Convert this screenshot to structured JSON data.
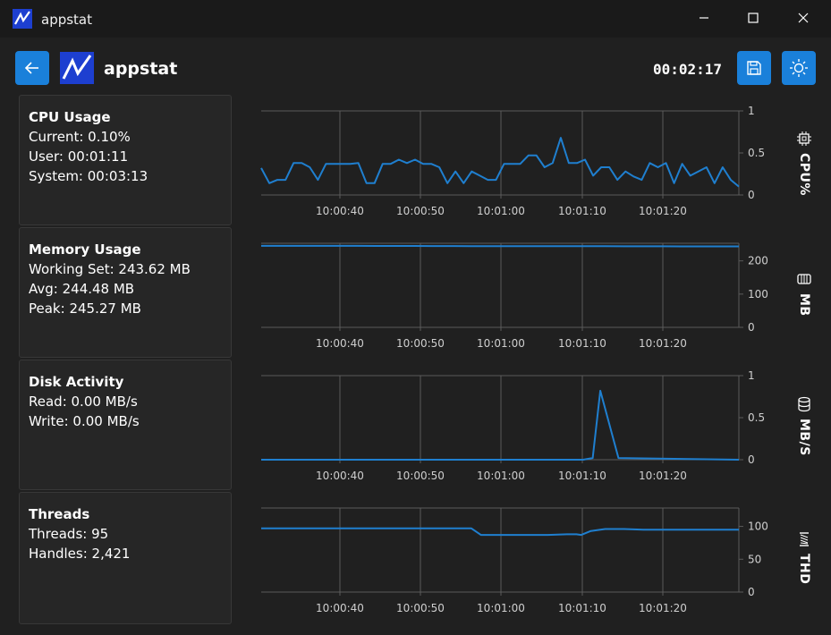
{
  "window": {
    "title": "appstat",
    "minimize_icon": "minimize-icon",
    "maximize_icon": "maximize-icon",
    "close_icon": "close-icon"
  },
  "header": {
    "back_icon": "arrow-left-icon",
    "app_name": "appstat",
    "timer": "00:02:17",
    "save_icon": "save-icon",
    "theme_icon": "sun-icon"
  },
  "colors": {
    "accent": "#1a80da",
    "series": "#1f7fcf",
    "background": "#202020",
    "card": "#262626",
    "grid": "#5a5a5a"
  },
  "cards": {
    "cpu": {
      "title": "CPU Usage",
      "lines": [
        "Current: 0.10%",
        "User: 00:01:11",
        "System: 00:03:13"
      ]
    },
    "memory": {
      "title": "Memory Usage",
      "lines": [
        "Working Set: 243.62 MB",
        "Avg: 244.48 MB",
        "Peak: 245.27 MB"
      ]
    },
    "disk": {
      "title": "Disk Activity",
      "lines": [
        "Read: 0.00 MB/s",
        "Write: 0.00 MB/s"
      ]
    },
    "threads": {
      "title": "Threads",
      "lines": [
        "Threads: 95",
        "Handles: 2,421"
      ]
    }
  },
  "side_labels": {
    "cpu": {
      "text": "CPU%",
      "icon": "cpu-chip-icon"
    },
    "memory": {
      "text": "MB",
      "icon": "memory-icon"
    },
    "disk": {
      "text": "MB/S",
      "icon": "disk-icon"
    },
    "threads": {
      "text": "THD",
      "icon": "thread-spool-icon"
    }
  },
  "chart_data": [
    {
      "type": "line",
      "x_ticks": [
        "10:00:40",
        "10:00:50",
        "10:01:00",
        "10:01:10",
        "10:01:20"
      ],
      "ylim": [
        0,
        1
      ],
      "y_ticks": [
        "0",
        "0.5",
        "1"
      ],
      "series": [
        {
          "values": [
            0.32,
            0.14,
            0.18,
            0.18,
            0.38,
            0.38,
            0.33,
            0.18,
            0.37,
            0.37,
            0.37,
            0.37,
            0.38,
            0.14,
            0.14,
            0.37,
            0.37,
            0.42,
            0.38,
            0.42,
            0.37,
            0.37,
            0.33,
            0.14,
            0.28,
            0.14,
            0.28,
            0.23,
            0.18,
            0.18,
            0.37,
            0.37,
            0.37,
            0.47,
            0.47,
            0.33,
            0.38,
            0.68,
            0.38,
            0.38,
            0.42,
            0.23,
            0.33,
            0.33,
            0.18,
            0.28,
            0.22,
            0.18,
            0.38,
            0.33,
            0.38,
            0.14,
            0.37,
            0.23,
            0.28,
            0.33,
            0.14,
            0.33,
            0.18,
            0.1
          ]
        }
      ]
    },
    {
      "type": "line",
      "x_ticks": [
        "10:00:40",
        "10:00:50",
        "10:01:00",
        "10:01:10",
        "10:01:20"
      ],
      "ylim": [
        0,
        253
      ],
      "y_ticks": [
        "0",
        "100",
        "200"
      ],
      "series": [
        {
          "values": [
            245.3,
            245.3,
            245.3,
            245.2,
            245.2,
            245.1,
            245.0,
            244.9,
            244.8,
            244.7,
            244.6,
            244.5,
            244.5,
            244.4,
            244.3,
            244.2,
            244.2,
            244.1,
            244.0,
            243.9,
            243.9,
            243.8,
            243.7,
            243.7,
            243.6,
            243.6
          ]
        }
      ]
    },
    {
      "type": "line",
      "x_ticks": [
        "10:00:40",
        "10:00:50",
        "10:01:00",
        "10:01:10",
        "10:01:20"
      ],
      "ylim": [
        0,
        1
      ],
      "y_ticks": [
        "0",
        "0.5",
        "1"
      ],
      "series": [
        {
          "x": [
            0,
            0.674,
            0.694,
            0.71,
            0.748,
            1
          ],
          "values": [
            0,
            0,
            0.02,
            0.82,
            0.02,
            0
          ]
        }
      ]
    },
    {
      "type": "line",
      "x_ticks": [
        "10:00:40",
        "10:00:50",
        "10:01:00",
        "10:01:10",
        "10:01:20"
      ],
      "ylim": [
        0,
        128
      ],
      "y_ticks": [
        "0",
        "50",
        "100"
      ],
      "series": [
        {
          "x": [
            0,
            0.44,
            0.46,
            0.56,
            0.6,
            0.64,
            0.66,
            0.67,
            0.69,
            0.72,
            0.76,
            0.8,
            1
          ],
          "values": [
            97,
            97,
            87,
            87,
            87,
            88,
            88,
            87,
            93,
            96,
            96,
            95,
            95
          ]
        }
      ]
    }
  ]
}
